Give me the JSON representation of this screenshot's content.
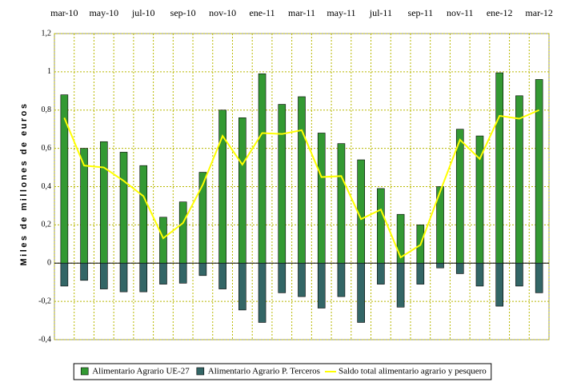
{
  "chart_data": {
    "type": "bar",
    "y_label": "Miles de millones de euros",
    "categories": [
      "mar-10",
      null,
      "may-10",
      null,
      "jul-10",
      null,
      "sep-10",
      null,
      "nov-10",
      null,
      "ene-11",
      null,
      "mar-11",
      null,
      "may-11",
      null,
      "jul-11",
      null,
      "sep-11",
      null,
      "nov-11",
      null,
      "ene-12",
      null,
      "mar-12"
    ],
    "series": [
      {
        "name": "Alimentario Agrario UE-27",
        "color": "#339933",
        "kind": "bar",
        "values": [
          0.88,
          0.6,
          0.635,
          0.58,
          0.51,
          0.24,
          0.32,
          0.475,
          0.8,
          0.76,
          0.99,
          0.83,
          0.87,
          0.68,
          0.625,
          0.54,
          0.39,
          0.255,
          0.2,
          0.4,
          0.7,
          0.665,
          0.995,
          0.875,
          0.96
        ]
      },
      {
        "name": "Alimentario Agrario P. Terceros",
        "color": "#336666",
        "kind": "bar",
        "values": [
          -0.12,
          -0.09,
          -0.135,
          -0.15,
          -0.15,
          -0.11,
          -0.105,
          -0.065,
          -0.135,
          -0.245,
          -0.31,
          -0.155,
          -0.175,
          -0.235,
          -0.175,
          -0.31,
          -0.11,
          -0.23,
          -0.11,
          -0.025,
          -0.055,
          -0.12,
          -0.225,
          -0.12,
          -0.155
        ]
      },
      {
        "name": "Saldo total alimentario agrario y pesquero",
        "color": "#ffff00",
        "kind": "line",
        "values": [
          0.76,
          0.51,
          0.5,
          0.43,
          0.35,
          0.13,
          0.21,
          0.41,
          0.665,
          0.515,
          0.68,
          0.675,
          0.695,
          0.45,
          0.455,
          0.23,
          0.28,
          0.03,
          0.095,
          0.375,
          0.645,
          0.545,
          0.77,
          0.755,
          0.8
        ]
      }
    ],
    "ylim": [
      -0.4,
      1.2
    ],
    "yticks": [
      {
        "value": -0.4,
        "label": "-0,4"
      },
      {
        "value": -0.2,
        "label": "-0,2"
      },
      0,
      {
        "value": 0.2,
        "label": "0,2"
      },
      {
        "value": 0.4,
        "label": "0,4"
      },
      {
        "value": 0.6,
        "label": "0,6"
      },
      {
        "value": 0.8,
        "label": "0,8"
      },
      1,
      {
        "value": 1.2,
        "label": "1,2"
      }
    ],
    "grid": true,
    "grid_color": "#b8b800",
    "legend": "bottom"
  }
}
